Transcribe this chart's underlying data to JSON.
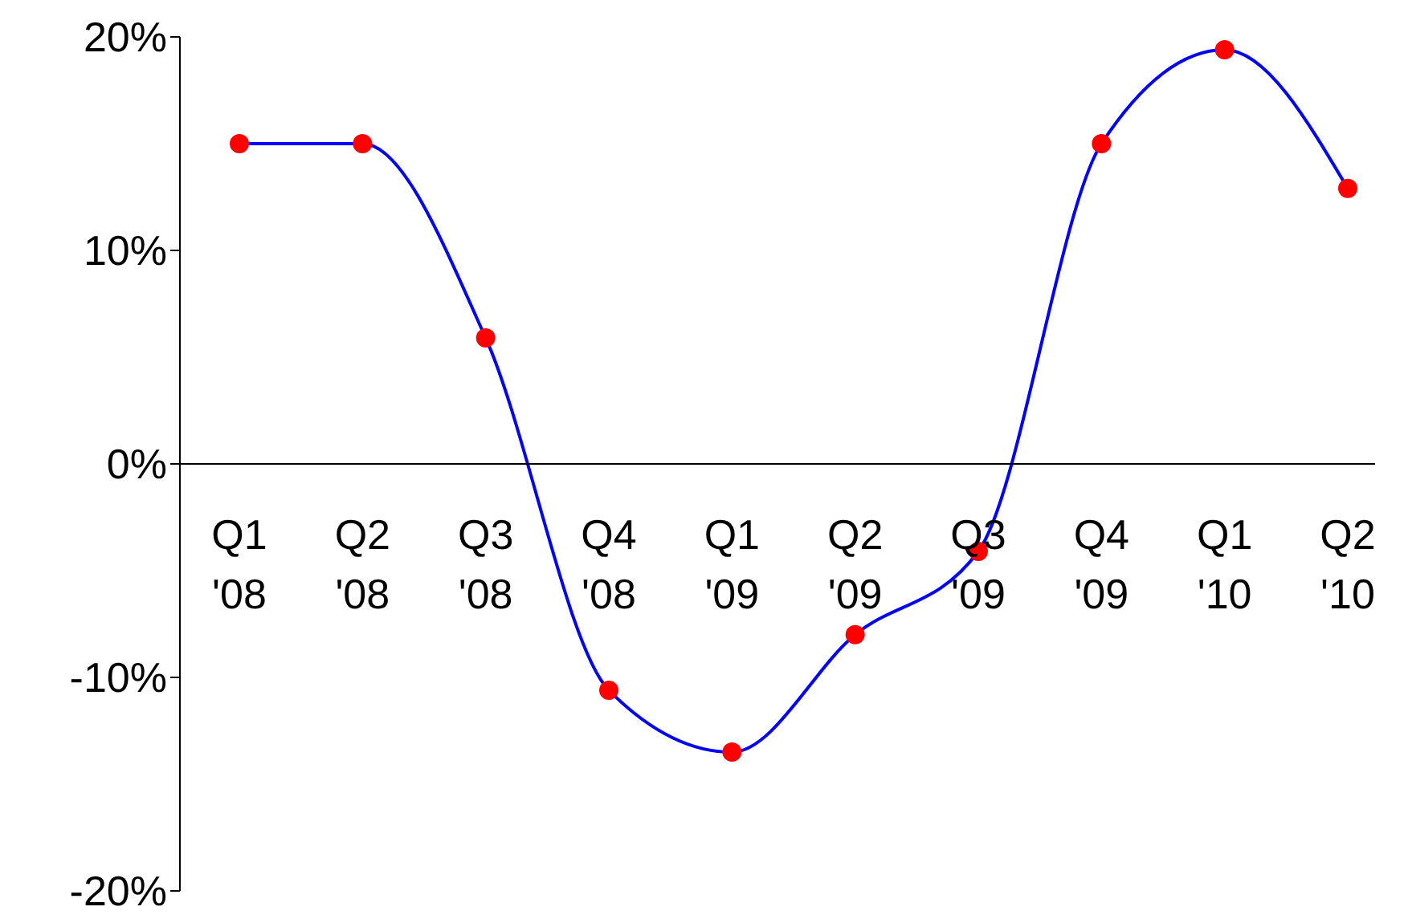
{
  "chart_data": {
    "type": "line",
    "categories": [
      "Q1 '08",
      "Q2 '08",
      "Q3 '08",
      "Q4 '08",
      "Q1 '09",
      "Q2 '09",
      "Q3 '09",
      "Q4 '09",
      "Q1 '10",
      "Q2 '10"
    ],
    "series": [
      {
        "color": "#0000ff",
        "values": [
          15,
          15,
          5.9,
          -10.6,
          -13.5,
          -8,
          -4.1,
          15,
          19.4,
          12.9
        ]
      }
    ],
    "marker": "circle",
    "ylim": [
      -20,
      20
    ],
    "yticks": [
      {
        "value": -20,
        "label": "-20%"
      },
      {
        "value": -10,
        "label": "-10%"
      },
      {
        "value": 0,
        "label": "0%"
      },
      {
        "value": 10,
        "label": "10%"
      },
      {
        "value": 20,
        "label": "20%"
      }
    ],
    "grid": false,
    "legend": false
  }
}
